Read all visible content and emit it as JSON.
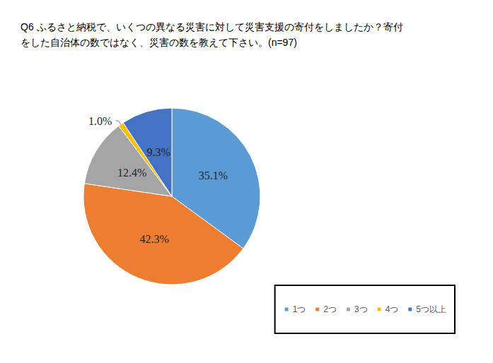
{
  "chart_data": {
    "type": "pie",
    "title": "Q6 ふるさと納税で、いくつの異なる災害に対して災害支援の寄付をしましたか？寄付をした自治体の数ではなく、災害の数を教えて下さい。(n=97)",
    "categories": [
      "1つ",
      "2つ",
      "3つ",
      "4つ",
      "5つ以上"
    ],
    "values": [
      35.1,
      42.3,
      12.4,
      1.0,
      9.3
    ],
    "value_labels": [
      "35.1%",
      "42.3%",
      "12.4%",
      "1.0%",
      "9.3%"
    ],
    "colors": [
      "#5b9bd5",
      "#ed7d31",
      "#a5a5a5",
      "#ffc000",
      "#4472c4"
    ],
    "data_labels": true,
    "legend": "lower right"
  }
}
